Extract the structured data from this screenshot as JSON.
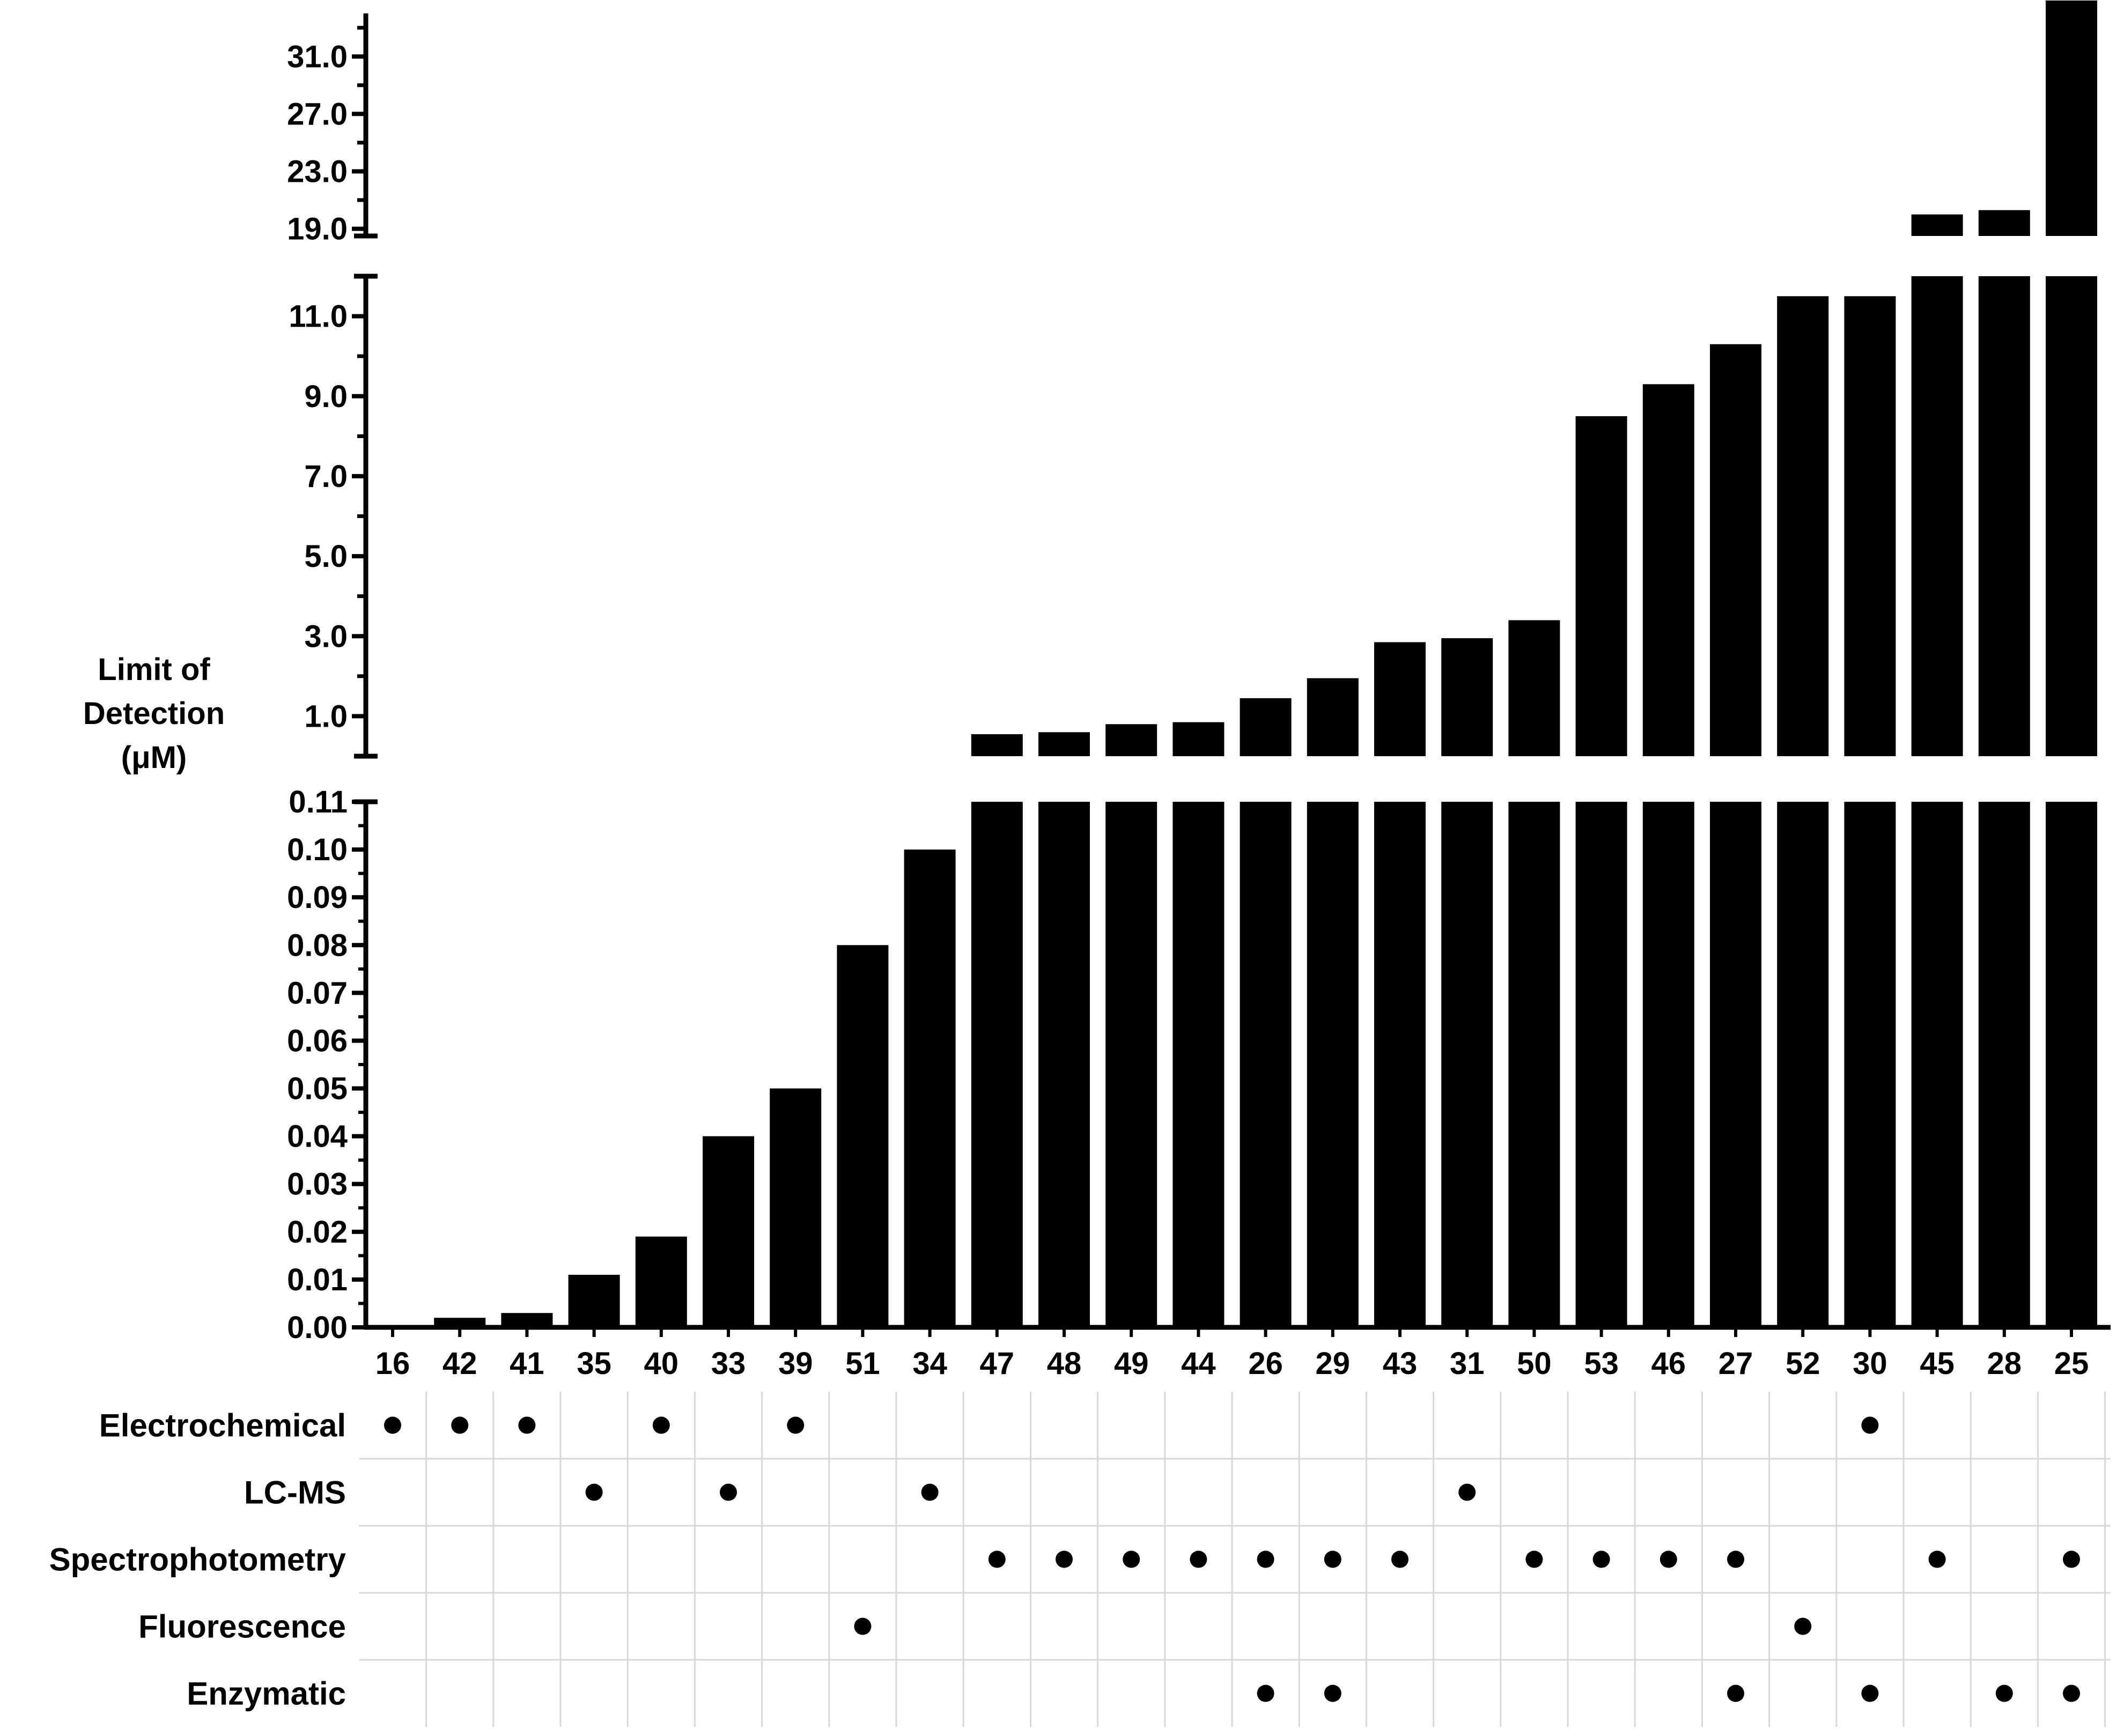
{
  "chart_data": {
    "type": "bar",
    "ylabel": [
      "Limit of",
      "Detection",
      "(μM)"
    ],
    "categories": [
      "16",
      "42",
      "41",
      "35",
      "40",
      "33",
      "39",
      "51",
      "34",
      "47",
      "48",
      "49",
      "44",
      "26",
      "29",
      "43",
      "31",
      "50",
      "53",
      "46",
      "27",
      "52",
      "30",
      "45",
      "28",
      "25"
    ],
    "values": [
      0.0005,
      0.002,
      0.003,
      0.011,
      0.019,
      0.04,
      0.05,
      0.08,
      0.1,
      0.55,
      0.6,
      0.8,
      0.85,
      1.45,
      1.95,
      2.85,
      2.95,
      3.4,
      8.5,
      9.3,
      10.3,
      11.5,
      11.5,
      20.0,
      20.3,
      35.0
    ],
    "y_breaks": true,
    "segments": [
      {
        "name": "lower",
        "ylim": [
          0.0,
          0.11
        ],
        "ticks": [
          "0.00",
          "0.01",
          "0.02",
          "0.03",
          "0.04",
          "0.05",
          "0.06",
          "0.07",
          "0.08",
          "0.09",
          "0.10",
          "0.11"
        ]
      },
      {
        "name": "middle",
        "ylim": [
          0.0,
          12.0
        ],
        "ticks": [
          "1.0",
          "3.0",
          "5.0",
          "7.0",
          "9.0",
          "11.0"
        ]
      },
      {
        "name": "upper",
        "ylim": [
          18.5,
          34.0
        ],
        "ticks": [
          "19.0",
          "23.0",
          "27.0",
          "31.0"
        ]
      }
    ],
    "methods": [
      "Electrochemical",
      "LC-MS",
      "Spectrophotometry",
      "Fluorescence",
      "Enzymatic"
    ],
    "method_matrix": {
      "Electrochemical": [
        "16",
        "42",
        "41",
        "40",
        "39",
        "30"
      ],
      "LC-MS": [
        "35",
        "33",
        "34",
        "31"
      ],
      "Spectrophotometry": [
        "47",
        "48",
        "49",
        "44",
        "26",
        "29",
        "43",
        "50",
        "53",
        "46",
        "27",
        "45",
        "25"
      ],
      "Fluorescence": [
        "51",
        "52"
      ],
      "Enzymatic": [
        "26",
        "29",
        "27",
        "30",
        "28",
        "25"
      ]
    },
    "grid": false,
    "legend": "none",
    "bar_color": "#000000"
  }
}
